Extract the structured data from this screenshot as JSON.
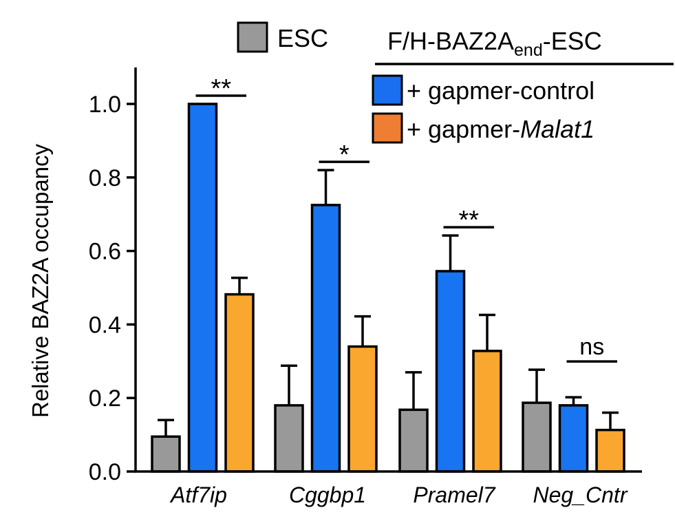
{
  "chart_data": {
    "type": "bar",
    "ylabel": "Relative BAZ2A occupancy",
    "ylim": [
      0,
      1.1
    ],
    "yticks": [
      "0.0",
      "0.2",
      "0.4",
      "0.6",
      "0.8",
      "1.0"
    ],
    "categories": [
      "Atf7ip",
      "Cggbp1",
      "Pramel7",
      "Neg_Cntr"
    ],
    "series": [
      {
        "name": "ESC",
        "color": "#999999",
        "values": [
          0.095,
          0.18,
          0.168,
          0.187
        ],
        "errors": [
          0.045,
          0.108,
          0.102,
          0.09
        ]
      },
      {
        "name": "gapmer-control",
        "color": "#1874f0",
        "values": [
          1.0,
          0.725,
          0.545,
          0.18
        ],
        "errors": [
          0.0,
          0.095,
          0.097,
          0.022
        ]
      },
      {
        "name": "gapmer-Malat1",
        "color": "#f9a72f",
        "values": [
          0.482,
          0.34,
          0.328,
          0.113
        ],
        "errors": [
          0.045,
          0.082,
          0.098,
          0.047
        ]
      }
    ],
    "significance": [
      {
        "category": 0,
        "label": "**"
      },
      {
        "category": 1,
        "label": "*"
      },
      {
        "category": 2,
        "label": "**"
      },
      {
        "category": 3,
        "label": "ns"
      }
    ],
    "legend": {
      "esc_label": "ESC",
      "group_title_main": "F/H-BAZ2A",
      "group_title_sub": "end",
      "group_title_tail": "-ESC",
      "plus": "+ ",
      "control_label": "gapmer-control",
      "malat_prefix": "gapmer-",
      "malat_italic": "Malat1",
      "control_swatch": "#1a6ef0",
      "malat_swatch": "#ee7e32"
    }
  }
}
